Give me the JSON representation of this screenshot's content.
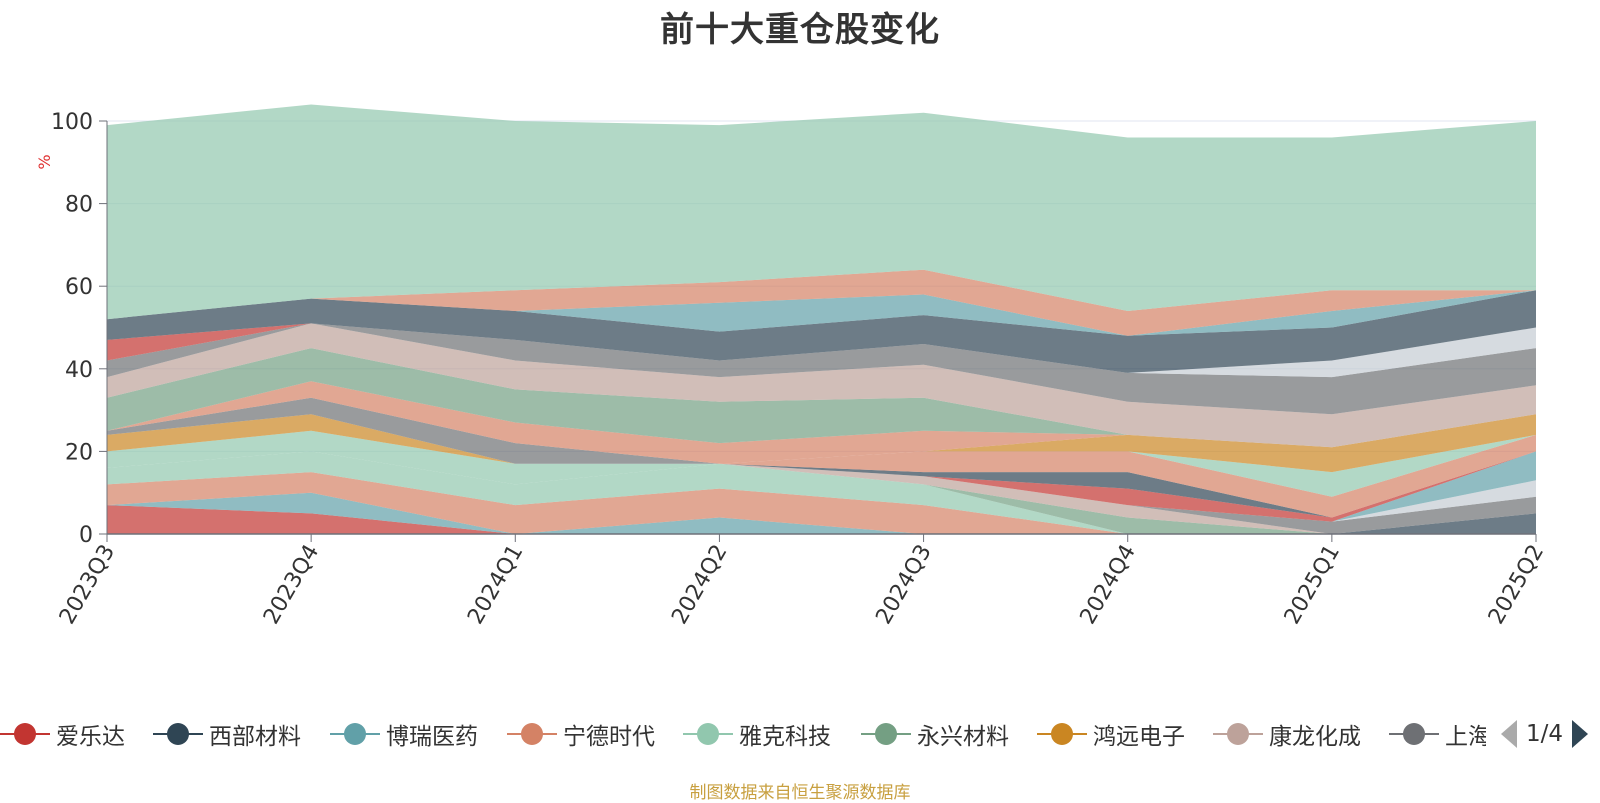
{
  "title": "前十大重仓股变化",
  "source_note": "制图数据来自恒生聚源数据库",
  "legend_page": "1/4",
  "chart_data": {
    "type": "area",
    "stacked": true,
    "categories": [
      "2023Q3",
      "2023Q4",
      "2024Q1",
      "2024Q2",
      "2024Q3",
      "2024Q4",
      "2025Q1",
      "2025Q2"
    ],
    "ylim": [
      0,
      100
    ],
    "yticks": [
      0,
      20,
      40,
      60,
      80,
      100
    ],
    "ylabel": "%",
    "grid": true,
    "legend_position": "bottom",
    "series": [
      {
        "name": "爱乐达",
        "color": "#c23531",
        "values": [
          7,
          5,
          0,
          0,
          0,
          0,
          0,
          0
        ]
      },
      {
        "name": "西部材料",
        "color": "#2f4554",
        "values": [
          0,
          0,
          0,
          0,
          0,
          0,
          0,
          5
        ]
      },
      {
        "name": "博瑞医药",
        "color": "#61a0a8",
        "values": [
          0,
          5,
          0,
          4,
          0,
          0,
          0,
          0
        ]
      },
      {
        "name": "宁德时代",
        "color": "#d48265",
        "values": [
          5,
          5,
          7,
          7,
          7,
          0,
          0,
          0
        ]
      },
      {
        "name": "雅克科技",
        "color": "#91c7ae",
        "values": [
          4,
          5,
          5,
          6,
          5,
          0,
          0,
          0
        ]
      },
      {
        "name": "永兴材料",
        "color": "#749f83",
        "values": [
          0,
          0,
          0,
          0,
          0,
          4,
          0,
          0
        ]
      },
      {
        "name": "鸿远电子",
        "color": "#ca8622",
        "values": [
          0,
          0,
          0,
          0,
          0,
          0,
          0,
          0
        ]
      },
      {
        "name": "康龙化成",
        "color": "#bda29a",
        "values": [
          0,
          0,
          0,
          0,
          2,
          3,
          0,
          0
        ]
      },
      {
        "name": "上海",
        "color": "#6e7074",
        "values": [
          0,
          0,
          0,
          0,
          0,
          0,
          3,
          4
        ]
      },
      {
        "name": "",
        "color": "#c4ccd3",
        "values": [
          0,
          0,
          0,
          0,
          0,
          0,
          0,
          4
        ]
      },
      {
        "name": "",
        "color": "#61a0a8",
        "values": [
          0,
          0,
          0,
          0,
          0,
          0,
          0,
          7
        ]
      },
      {
        "name": "",
        "color": "#c23531",
        "values": [
          0,
          0,
          0,
          0,
          0,
          4,
          1,
          0
        ]
      },
      {
        "name": "",
        "color": "#2f4554",
        "values": [
          0,
          0,
          0,
          0,
          1,
          4,
          0,
          0
        ]
      },
      {
        "name": "",
        "color": "#d48265",
        "values": [
          0,
          0,
          0,
          0,
          5,
          5,
          5,
          4
        ]
      },
      {
        "name": "",
        "color": "#91c7ae",
        "values": [
          4,
          5,
          5,
          0,
          0,
          0,
          6,
          0
        ]
      },
      {
        "name": "",
        "color": "#ca8622",
        "values": [
          4,
          4,
          0,
          0,
          0,
          4,
          6,
          5
        ]
      },
      {
        "name": "",
        "color": "#6e7074",
        "values": [
          1,
          4,
          5,
          0,
          0,
          0,
          0,
          0
        ]
      },
      {
        "name": "",
        "color": "#d48265",
        "values": [
          0,
          4,
          5,
          5,
          5,
          0,
          0,
          0
        ]
      },
      {
        "name": "",
        "color": "#749f83",
        "values": [
          8,
          8,
          8,
          10,
          8,
          0,
          0,
          0
        ]
      },
      {
        "name": "",
        "color": "#bda29a",
        "values": [
          5,
          6,
          7,
          6,
          8,
          8,
          8,
          7
        ]
      },
      {
        "name": "",
        "color": "#6e7074",
        "values": [
          4,
          0,
          5,
          4,
          5,
          7,
          9,
          9
        ]
      },
      {
        "name": "",
        "color": "#c4ccd3",
        "values": [
          0,
          0,
          0,
          0,
          0,
          0,
          4,
          5
        ]
      },
      {
        "name": "",
        "color": "#c23531",
        "values": [
          5,
          0,
          0,
          0,
          0,
          0,
          0,
          0
        ]
      },
      {
        "name": "",
        "color": "#2f4554",
        "values": [
          5,
          6,
          7,
          7,
          7,
          9,
          8,
          9
        ]
      },
      {
        "name": "",
        "color": "#61a0a8",
        "values": [
          0,
          0,
          0,
          7,
          5,
          0,
          4,
          0
        ]
      },
      {
        "name": "",
        "color": "#d48265",
        "values": [
          0,
          0,
          5,
          5,
          6,
          6,
          5,
          0
        ]
      },
      {
        "name": "",
        "color": "#91c7ae",
        "values": [
          47,
          47,
          41,
          38,
          38,
          42,
          37,
          41
        ]
      }
    ]
  }
}
